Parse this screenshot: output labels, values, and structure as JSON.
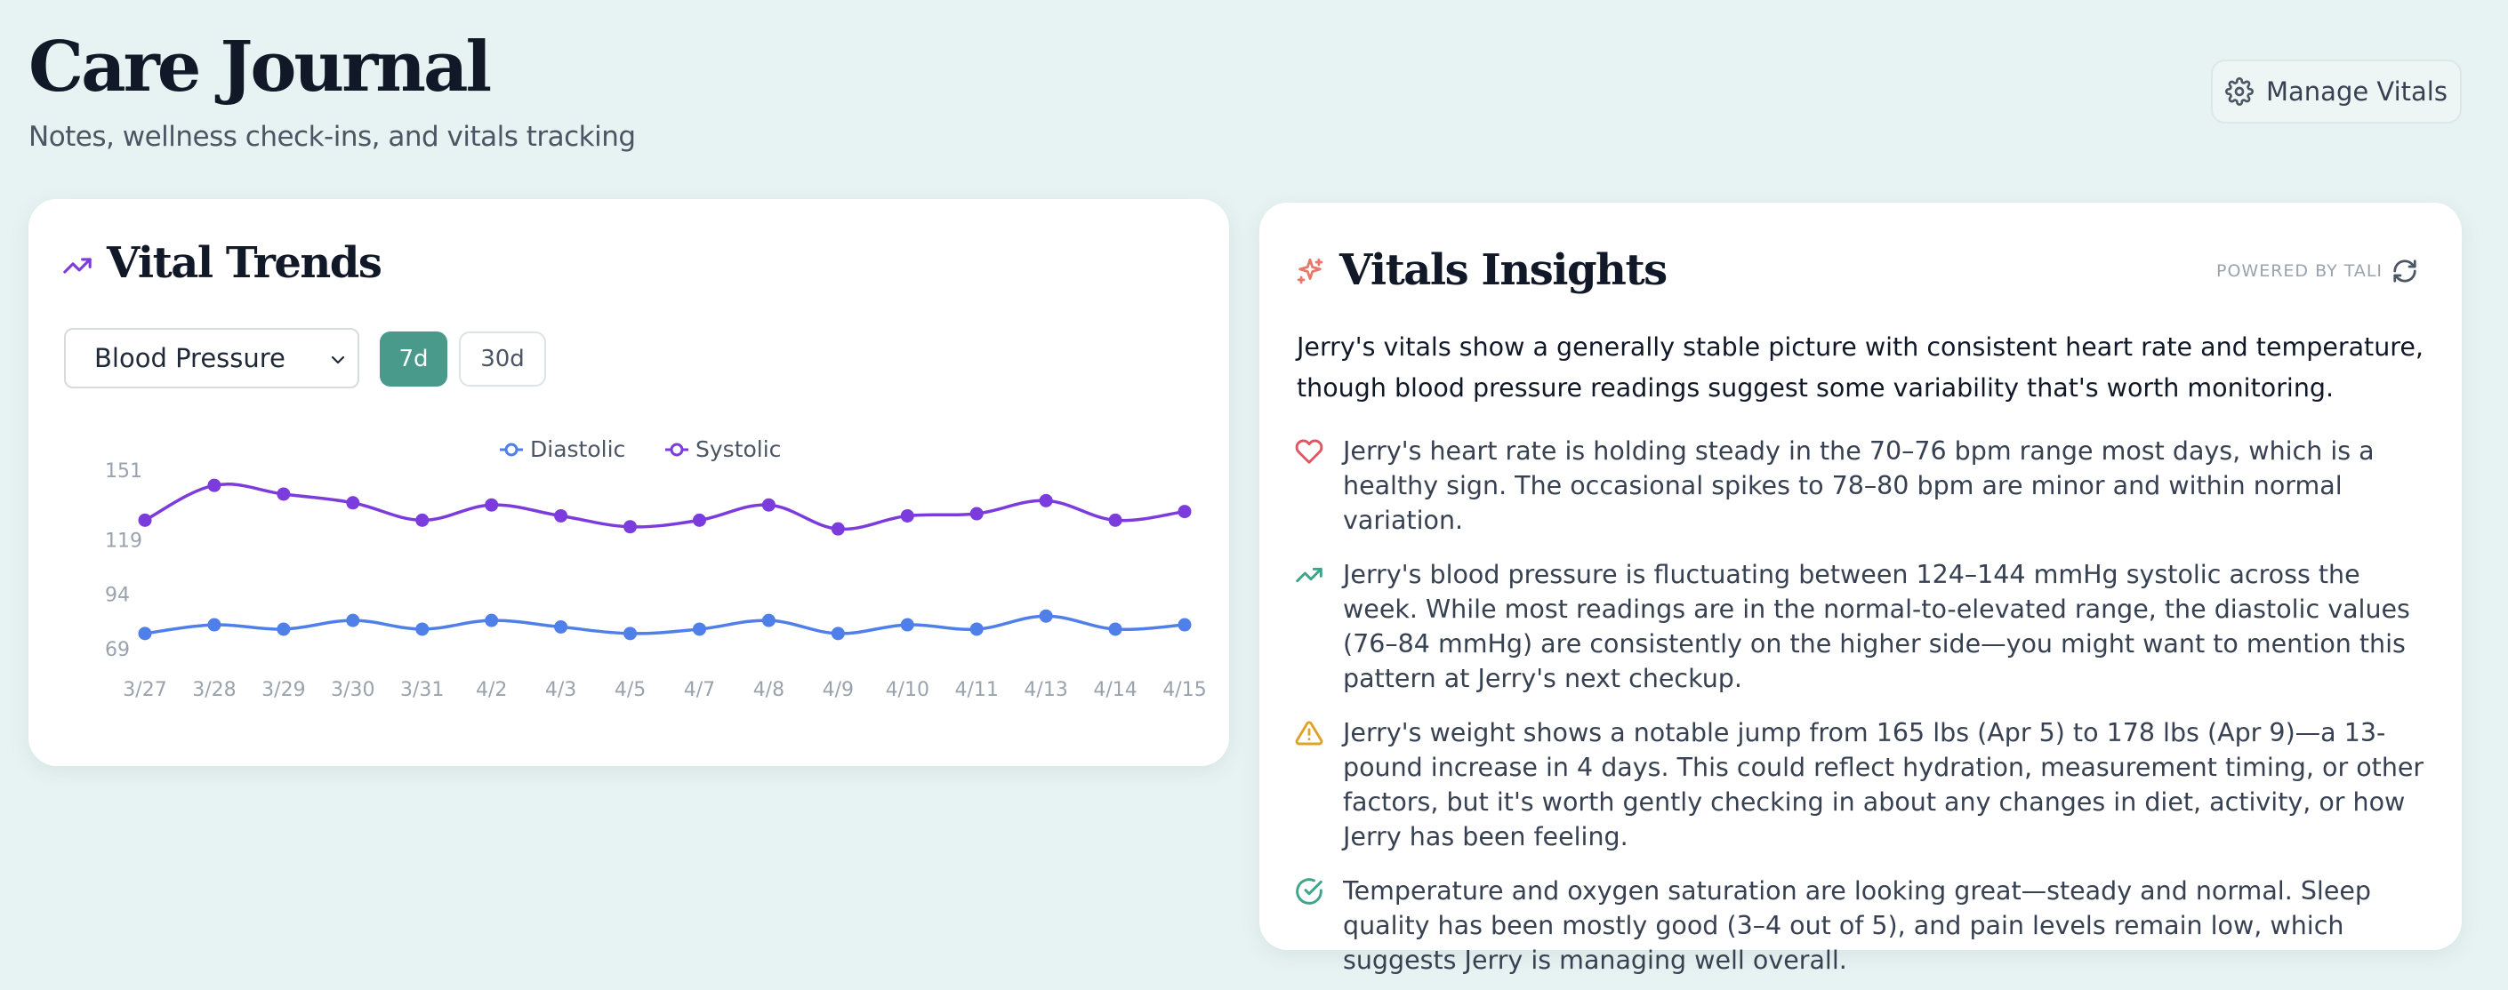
{
  "header": {
    "title": "Care Journal",
    "subtitle": "Notes, wellness check-ins, and vitals tracking",
    "manage_label": "Manage Vitals"
  },
  "trends": {
    "title": "Vital Trends",
    "metric_selected": "Blood Pressure",
    "ranges": [
      "7d",
      "30d"
    ],
    "active_range": "7d"
  },
  "chart_data": {
    "type": "line",
    "title": "",
    "xlabel": "",
    "ylabel": "",
    "categories": [
      "3/27",
      "3/28",
      "3/29",
      "3/30",
      "3/31",
      "4/2",
      "4/3",
      "4/5",
      "4/7",
      "4/8",
      "4/9",
      "4/10",
      "4/11",
      "4/13",
      "4/14",
      "4/15"
    ],
    "yticks": [
      69,
      94,
      119,
      151
    ],
    "ylim": [
      69,
      151
    ],
    "legend_position": "top-center",
    "series": [
      {
        "name": "Diastolic",
        "color": "#4f7fe8",
        "values": [
          76,
          80,
          78,
          82,
          78,
          82,
          79,
          76,
          78,
          82,
          76,
          80,
          78,
          84,
          78,
          80
        ]
      },
      {
        "name": "Systolic",
        "color": "#7c3bdc",
        "values": [
          128,
          144,
          140,
          136,
          128,
          135,
          130,
          125,
          128,
          135,
          124,
          130,
          131,
          137,
          128,
          132
        ]
      }
    ]
  },
  "insights": {
    "title": "Vitals Insights",
    "powered_by": "POWERED BY TALI",
    "summary": "Jerry's vitals show a generally stable picture with consistent heart rate and temperature, though blood pressure readings suggest some variability that's worth monitoring.",
    "items": [
      {
        "icon": "heart-icon",
        "color": "#e25563",
        "text": "Jerry's heart rate is holding steady in the 70–76 bpm range most days, which is a healthy sign. The occasional spikes to 78–80 bpm are minor and within normal variation."
      },
      {
        "icon": "trending-up-icon",
        "color": "#3fa58a",
        "text": "Jerry's blood pressure is fluctuating between 124–144 mmHg systolic across the week. While most readings are in the normal-to-elevated range, the diastolic values (76–84 mmHg) are consistently on the higher side—you might want to mention this pattern at Jerry's next checkup."
      },
      {
        "icon": "warning-icon",
        "color": "#e0a32a",
        "text": "Jerry's weight shows a notable jump from 165 lbs (Apr 5) to 178 lbs (Apr 9)—a 13-pound increase in 4 days. This could reflect hydration, measurement timing, or other factors, but it's worth gently checking in about any changes in diet, activity, or how Jerry has been feeling."
      },
      {
        "icon": "check-circle-icon",
        "color": "#3fa58a",
        "text": "Temperature and oxygen saturation are looking great—steady and normal. Sleep quality has been mostly good (3–4 out of 5), and pain levels remain low, which suggests Jerry is managing well overall."
      }
    ]
  }
}
